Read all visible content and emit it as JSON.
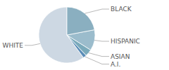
{
  "chart_data": {
    "type": "pie",
    "categories": [
      "WHITE",
      "A.I.",
      "ASIAN",
      "HISPANIC",
      "BLACK"
    ],
    "values": [
      60,
      2,
      4,
      12,
      22
    ],
    "colors": [
      "#cdd8e3",
      "#5b8db8",
      "#7aaabb",
      "#9bbccc",
      "#8aafc0"
    ]
  }
}
